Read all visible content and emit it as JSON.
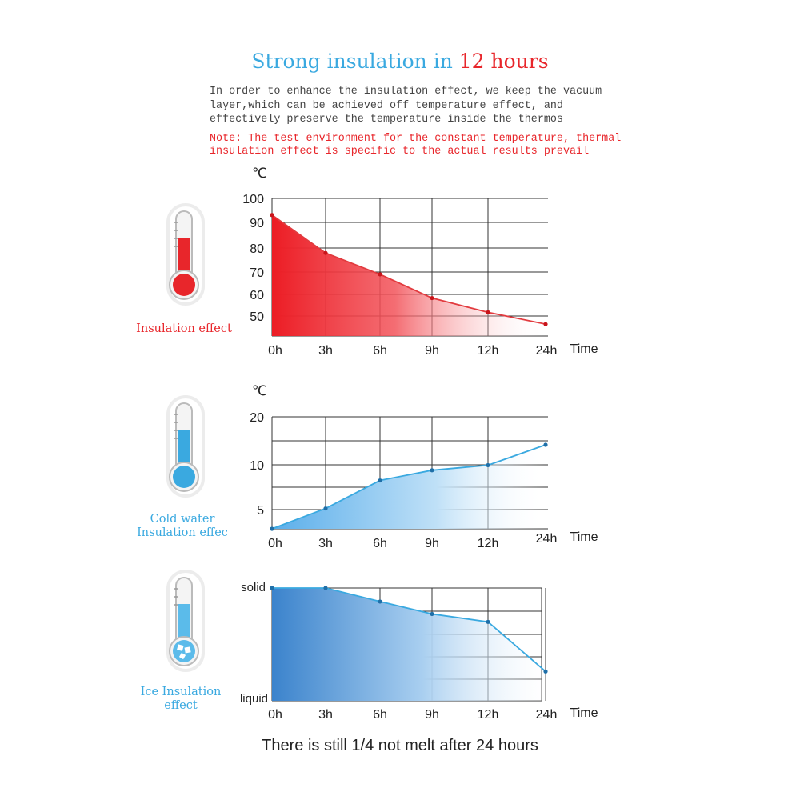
{
  "header": {
    "title_main": "Strong insulation in ",
    "title_highlight": "12 hours",
    "intro": "In order to enhance the insulation effect, we keep the vacuum\nlayer,which can be achieved off temperature effect, and\neffectively preserve the temperature inside the thermos",
    "note": "Note: The test environment for the constant temperature, thermal\ninsulation effect is specific to the actual results prevail"
  },
  "footer": {
    "text": "There is still 1/4 not melt after 24 hours"
  },
  "colors": {
    "hot": "#e8262b",
    "cold": "#3aa9e0",
    "ice": "#3b8fd6",
    "grid": "#222222"
  },
  "icons": [
    "thermometer-hot-icon",
    "thermometer-cold-icon",
    "thermometer-ice-icon"
  ],
  "chart_data": [
    {
      "type": "area",
      "side_label": "Insulation effect",
      "unit_label": "℃",
      "xlabel": "Time",
      "categories": [
        "0h",
        "3h",
        "6h",
        "9h",
        "12h",
        "24h"
      ],
      "values": [
        93,
        77,
        68,
        58,
        52,
        47
      ],
      "yticks": [
        100,
        90,
        80,
        70,
        60,
        50
      ],
      "ylim": [
        42,
        100
      ],
      "color": "#e8262b"
    },
    {
      "type": "area",
      "side_label": "Cold water\nInsulation effec",
      "unit_label": "℃",
      "xlabel": "Time",
      "categories": [
        "0h",
        "3h",
        "6h",
        "9h",
        "12h",
        "24h"
      ],
      "values": [
        0,
        4,
        9.5,
        11.5,
        12.5,
        16.5
      ],
      "yticks": [
        20,
        10,
        5
      ],
      "ylim": [
        0,
        22
      ],
      "color": "#3aa9e0"
    },
    {
      "type": "area",
      "side_label": "Ice Insulation\neffect",
      "xlabel": "Time",
      "categories": [
        "0h",
        "3h",
        "6h",
        "9h",
        "12h",
        "24h"
      ],
      "values": [
        1.0,
        1.0,
        0.88,
        0.77,
        0.7,
        0.26
      ],
      "ytick_labels": [
        "solid",
        "liquid"
      ],
      "ylim": [
        0,
        1
      ],
      "color": "#3aa9e0"
    }
  ]
}
